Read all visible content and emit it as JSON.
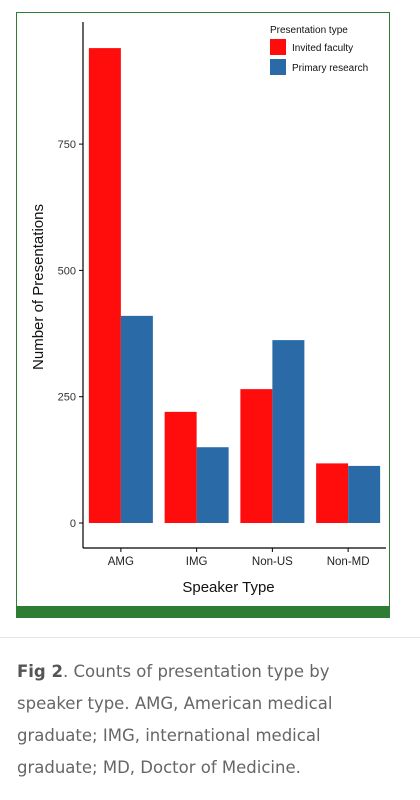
{
  "chart_data": {
    "type": "bar",
    "categories": [
      "AMG",
      "IMG",
      "Non-US",
      "Non-MD"
    ],
    "series": [
      {
        "name": "Invited faculty",
        "values": [
          940,
          220,
          265,
          118
        ]
      },
      {
        "name": "Primary research",
        "values": [
          410,
          150,
          362,
          113
        ]
      }
    ],
    "xlabel": "Speaker Type",
    "ylabel": "Number of Presentations",
    "ylim": [
      0,
      1000
    ],
    "yticks": [
      0,
      250,
      500,
      750
    ],
    "legend_title": "Presentation type",
    "legend_position": "top-right",
    "grid": false
  },
  "colors": {
    "Invited faculty": "#ff0d0d",
    "Primary research": "#2a6aa6",
    "frame": "#2e7d32"
  },
  "caption": {
    "label": "Fig 2",
    "text": ". Counts of presentation type by speaker type. AMG, American medical graduate; IMG, international medical graduate; MD, Doctor of Medicine."
  }
}
